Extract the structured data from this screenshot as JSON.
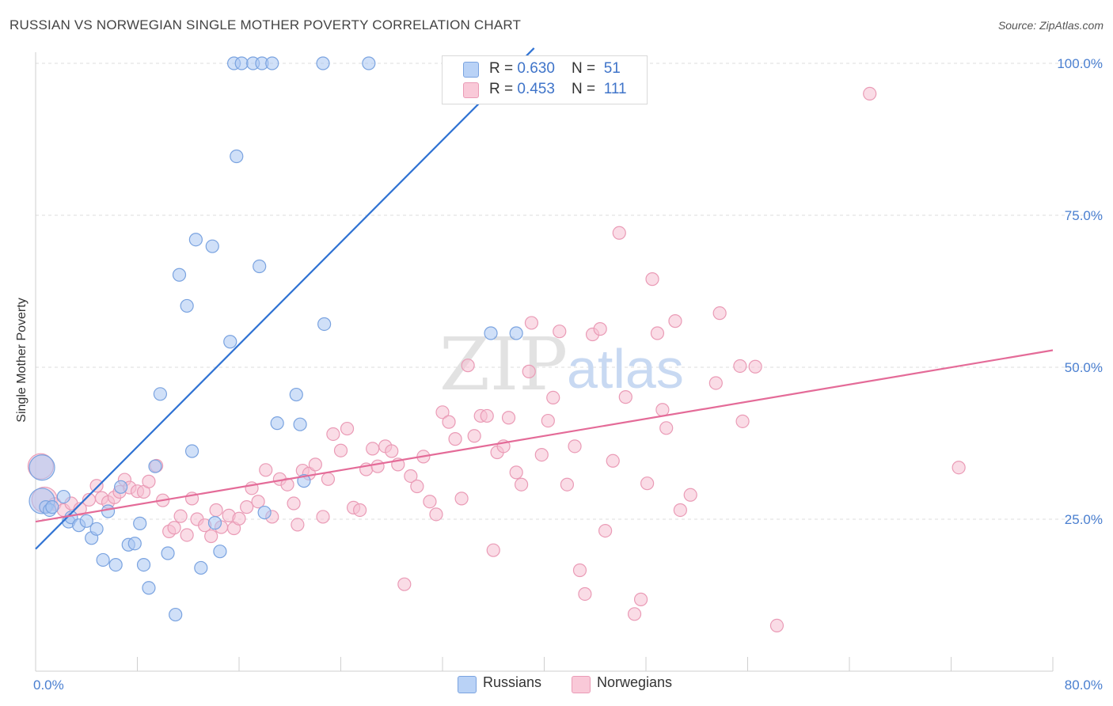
{
  "header": {
    "title": "RUSSIAN VS NORWEGIAN SINGLE MOTHER POVERTY CORRELATION CHART",
    "source": "Source: ZipAtlas.com"
  },
  "watermark": {
    "zip": "ZIP",
    "atlas": "atlas"
  },
  "stats": {
    "russians": {
      "r_label": "R = ",
      "r_value": "0.630",
      "n_label": "N = ",
      "n_value": "51"
    },
    "norwegians": {
      "r_label": "R = ",
      "r_value": "0.453",
      "n_label": "N = ",
      "n_value": "111"
    }
  },
  "legend": {
    "russians": "Russians",
    "norwegians": "Norwegians"
  },
  "colors": {
    "russians_fill": "#a9c6f2",
    "russians_stroke": "#7aa3e0",
    "russians_line": "#2f72d3",
    "norwegians_fill": "#f6c0d1",
    "norwegians_stroke": "#ea9bb6",
    "norwegians_line": "#e46b98",
    "tick_text": "#4a7fd0"
  },
  "chart_data": {
    "type": "scatter",
    "title": "RUSSIAN VS NORWEGIAN SINGLE MOTHER POVERTY CORRELATION CHART",
    "xlabel": "",
    "ylabel": "Single Mother Poverty",
    "xlim": [
      0,
      80
    ],
    "ylim": [
      0,
      105
    ],
    "x_tick_labels": [
      "0.0%",
      "80.0%"
    ],
    "y_ticks": [
      25,
      50,
      75,
      100
    ],
    "y_tick_labels": [
      "25.0%",
      "50.0%",
      "75.0%",
      "100.0%"
    ],
    "grid": true,
    "legend_position": "bottom",
    "series": [
      {
        "name": "Russians",
        "r": 0.63,
        "n": 51,
        "trend": {
          "x": [
            0,
            39.2
          ],
          "y": [
            20.1,
            102.5
          ]
        },
        "points": [
          [
            0.5,
            33.5,
            "big"
          ],
          [
            0.5,
            28,
            "big"
          ],
          [
            0.8,
            27
          ],
          [
            1.1,
            26.5
          ],
          [
            1.3,
            27
          ],
          [
            2.2,
            28.7
          ],
          [
            2.6,
            24.6
          ],
          [
            2.8,
            25.3
          ],
          [
            3.4,
            24
          ],
          [
            4,
            24.7
          ],
          [
            4.4,
            21.9
          ],
          [
            4.8,
            23.4
          ],
          [
            5.3,
            18.3
          ],
          [
            5.7,
            26.3
          ],
          [
            6.3,
            17.5
          ],
          [
            6.7,
            30.3
          ],
          [
            7.3,
            20.8
          ],
          [
            7.8,
            21
          ],
          [
            8.2,
            24.3
          ],
          [
            8.5,
            17.5
          ],
          [
            8.9,
            13.7
          ],
          [
            9.4,
            33.7
          ],
          [
            9.8,
            45.6
          ],
          [
            10.4,
            19.4
          ],
          [
            11.0,
            9.3
          ],
          [
            11.3,
            65.2
          ],
          [
            11.9,
            60.1
          ],
          [
            12.3,
            36.2
          ],
          [
            12.6,
            71.0
          ],
          [
            13.0,
            17.0
          ],
          [
            13.9,
            69.9
          ],
          [
            14.1,
            24.4
          ],
          [
            14.5,
            19.7
          ],
          [
            15.3,
            54.2
          ],
          [
            15.8,
            84.7
          ],
          [
            15.6,
            100
          ],
          [
            16.2,
            100
          ],
          [
            17.1,
            100
          ],
          [
            17.6,
            66.6
          ],
          [
            17.8,
            100
          ],
          [
            18.0,
            26.1
          ],
          [
            18.6,
            100
          ],
          [
            19.0,
            40.8
          ],
          [
            20.5,
            45.5
          ],
          [
            20.8,
            40.6
          ],
          [
            21.1,
            31.3
          ],
          [
            22.6,
            100
          ],
          [
            22.7,
            57.1
          ],
          [
            26.2,
            100
          ],
          [
            35.8,
            55.6
          ],
          [
            37.8,
            55.6
          ]
        ]
      },
      {
        "name": "Norwegians",
        "r": 0.453,
        "n": 111,
        "trend": {
          "x": [
            0,
            80
          ],
          "y": [
            24.6,
            52.8
          ]
        },
        "points": [
          [
            0.4,
            33.7,
            "big"
          ],
          [
            0.7,
            28.2,
            "big"
          ],
          [
            1.5,
            27.5
          ],
          [
            2.2,
            26.5
          ],
          [
            2.8,
            27.6
          ],
          [
            3.5,
            26.7
          ],
          [
            4.2,
            28.2
          ],
          [
            4.8,
            30.5
          ],
          [
            5.2,
            28.5
          ],
          [
            5.7,
            27.8
          ],
          [
            6.2,
            28.6
          ],
          [
            6.6,
            29.5
          ],
          [
            7.0,
            31.5
          ],
          [
            7.4,
            30.2
          ],
          [
            8.0,
            29.6
          ],
          [
            8.5,
            29.5
          ],
          [
            8.9,
            31.2
          ],
          [
            9.5,
            33.8
          ],
          [
            10.0,
            28.1
          ],
          [
            10.5,
            23.0
          ],
          [
            10.9,
            23.6
          ],
          [
            11.4,
            25.5
          ],
          [
            11.9,
            22.4
          ],
          [
            12.3,
            28.4
          ],
          [
            12.7,
            25.0
          ],
          [
            13.3,
            24.0
          ],
          [
            13.8,
            22.2
          ],
          [
            14.2,
            26.5
          ],
          [
            14.6,
            23.7
          ],
          [
            15.2,
            25.6
          ],
          [
            15.6,
            23.5
          ],
          [
            16.0,
            25.1
          ],
          [
            16.6,
            27.0
          ],
          [
            17.0,
            30.1
          ],
          [
            17.5,
            27.9
          ],
          [
            18.1,
            33.1
          ],
          [
            18.6,
            25.4
          ],
          [
            19.2,
            31.6
          ],
          [
            19.8,
            30.7
          ],
          [
            20.3,
            27.6
          ],
          [
            20.6,
            24.1
          ],
          [
            21.0,
            33.0
          ],
          [
            21.5,
            32.5
          ],
          [
            22.0,
            34.0
          ],
          [
            22.6,
            25.4
          ],
          [
            23.0,
            31.6
          ],
          [
            23.4,
            39.0
          ],
          [
            24.0,
            36.3
          ],
          [
            24.5,
            39.9
          ],
          [
            25.0,
            26.9
          ],
          [
            25.5,
            26.5
          ],
          [
            26.0,
            33.2
          ],
          [
            26.5,
            36.6
          ],
          [
            26.9,
            33.7
          ],
          [
            27.5,
            37.0
          ],
          [
            28.0,
            36.2
          ],
          [
            28.5,
            34.0
          ],
          [
            29.0,
            14.3
          ],
          [
            29.5,
            32.1
          ],
          [
            30.0,
            30.4
          ],
          [
            30.5,
            35.3
          ],
          [
            31.0,
            27.9
          ],
          [
            31.5,
            25.8
          ],
          [
            32.0,
            42.6
          ],
          [
            32.5,
            41.0
          ],
          [
            33.0,
            38.2
          ],
          [
            33.5,
            28.4
          ],
          [
            34.0,
            50.3
          ],
          [
            34.5,
            38.7
          ],
          [
            35.0,
            42.0
          ],
          [
            35.5,
            42.0
          ],
          [
            36.0,
            19.9
          ],
          [
            36.3,
            36.0
          ],
          [
            36.8,
            37.0
          ],
          [
            37.2,
            41.7
          ],
          [
            37.8,
            32.7
          ],
          [
            38.2,
            30.7
          ],
          [
            38.8,
            49.3
          ],
          [
            39.0,
            57.3
          ],
          [
            39.8,
            35.6
          ],
          [
            40.3,
            41.2
          ],
          [
            40.7,
            45.0
          ],
          [
            41.2,
            55.9
          ],
          [
            41.8,
            30.7
          ],
          [
            42.4,
            37.0
          ],
          [
            42.8,
            16.6
          ],
          [
            43.2,
            12.7
          ],
          [
            43.8,
            55.4
          ],
          [
            44.4,
            56.3
          ],
          [
            44.8,
            23.1
          ],
          [
            45.4,
            34.6
          ],
          [
            45.9,
            72.1
          ],
          [
            46.4,
            45.1
          ],
          [
            47.1,
            9.4
          ],
          [
            47.6,
            11.8
          ],
          [
            48.1,
            30.9
          ],
          [
            48.5,
            64.5
          ],
          [
            48.9,
            55.6
          ],
          [
            49.3,
            43.0
          ],
          [
            49.6,
            40.0
          ],
          [
            50.3,
            57.6
          ],
          [
            50.7,
            26.5
          ],
          [
            51.5,
            29.0
          ],
          [
            53.5,
            47.4
          ],
          [
            53.8,
            58.9
          ],
          [
            55.4,
            50.2
          ],
          [
            55.6,
            41.1
          ],
          [
            56.6,
            50.1
          ],
          [
            58.3,
            7.5
          ],
          [
            65.6,
            95.0
          ],
          [
            72.6,
            33.5
          ]
        ]
      }
    ]
  }
}
